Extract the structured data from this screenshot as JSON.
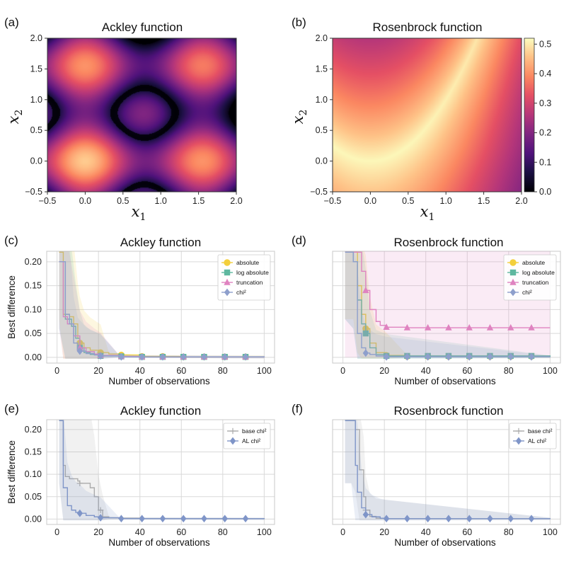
{
  "panels": {
    "a": {
      "label": "(a)",
      "title": "Ackley function"
    },
    "b": {
      "label": "(b)",
      "title": "Rosenbrock function"
    },
    "c": {
      "label": "(c)",
      "title": "Ackley function"
    },
    "d": {
      "label": "(d)",
      "title": "Rosenbrock function"
    },
    "e": {
      "label": "(e)",
      "title": "Ackley function"
    },
    "f": {
      "label": "(f)",
      "title": "Rosenbrock function"
    }
  },
  "heatmap_axes": {
    "xlabel_main": "x",
    "xlabel_sub": "1",
    "ylabel_main": "x",
    "ylabel_sub": "2",
    "ticks": [
      "−0.5",
      "0.0",
      "0.5",
      "1.0",
      "1.5",
      "2.0"
    ]
  },
  "colorbar": {
    "ticks": [
      "0.0",
      "0.1",
      "0.2",
      "0.3",
      "0.4",
      "0.5"
    ]
  },
  "line_axes": {
    "xlabel": "Number of observations",
    "ylabel": "Best difference",
    "xticks": [
      "0",
      "20",
      "40",
      "60",
      "80",
      "100"
    ],
    "yticks": [
      "0.00",
      "0.05",
      "0.10",
      "0.15",
      "0.20"
    ]
  },
  "legend_cd": [
    "absolute",
    "log absolute",
    "truncation",
    "chi²"
  ],
  "legend_ef": [
    "base chi²",
    "AL chi²"
  ],
  "colors": {
    "absolute": "#f3cf3c",
    "log_absolute": "#5fb8a0",
    "truncation": "#df83c0",
    "chi2": "#8e9fcc",
    "base_chi2": "#ababab",
    "al_chi2": "#7f95c8"
  },
  "chart_data": [
    {
      "type": "heatmap",
      "panel": "a",
      "title": "Ackley function",
      "x_range": [
        -0.5,
        2.0
      ],
      "y_range": [
        -0.5,
        2.0
      ],
      "colormap": "magma",
      "description_values": "periodic bright spots near (0,0),(0,1.57),(1.57,0),(1.57,1.57), dark rings around them"
    },
    {
      "type": "heatmap",
      "panel": "b",
      "title": "Rosenbrock function",
      "x_range": [
        -0.5,
        2.0
      ],
      "y_range": [
        -0.5,
        2.0
      ],
      "colormap": "magma",
      "colorbar_range": [
        0.0,
        0.52
      ]
    },
    {
      "type": "line",
      "panel": "c",
      "title": "Ackley function",
      "xlabel": "Number of observations",
      "ylabel": "Best difference",
      "xlim": [
        -5,
        105
      ],
      "ylim": [
        -0.012,
        0.222
      ],
      "series": [
        {
          "name": "absolute",
          "x": [
            1,
            3,
            6,
            8,
            10,
            11,
            13,
            16,
            21,
            25,
            31,
            40,
            60,
            100
          ],
          "y": [
            0.22,
            0.09,
            0.085,
            0.07,
            0.04,
            0.03,
            0.02,
            0.015,
            0.01,
            0.007,
            0.005,
            0.002,
            0.001,
            0.001
          ]
        },
        {
          "name": "log absolute",
          "x": [
            1,
            4,
            7,
            9,
            11,
            13,
            16,
            21,
            30,
            40,
            100
          ],
          "y": [
            0.2,
            0.08,
            0.065,
            0.04,
            0.02,
            0.01,
            0.006,
            0.003,
            0.002,
            0.001,
            0.0
          ]
        },
        {
          "name": "truncation",
          "x": [
            1,
            3,
            5,
            8,
            11,
            14,
            18,
            21,
            30,
            40,
            100
          ],
          "y": [
            0.2,
            0.085,
            0.07,
            0.045,
            0.02,
            0.012,
            0.007,
            0.004,
            0.002,
            0.001,
            0.0
          ]
        },
        {
          "name": "chi²",
          "x": [
            1,
            4,
            6,
            8,
            10,
            11,
            14,
            18,
            21,
            30,
            100
          ],
          "y": [
            0.2,
            0.09,
            0.07,
            0.03,
            0.015,
            0.013,
            0.008,
            0.005,
            0.003,
            0.001,
            0.0
          ]
        }
      ]
    },
    {
      "type": "line",
      "panel": "d",
      "title": "Rosenbrock function",
      "xlabel": "Number of observations",
      "ylabel": "",
      "xlim": [
        -5,
        105
      ],
      "ylim": [
        -0.012,
        0.222
      ],
      "series": [
        {
          "name": "absolute",
          "x": [
            1,
            5,
            7,
            9,
            11,
            13,
            16,
            21,
            31,
            100
          ],
          "y": [
            0.22,
            0.22,
            0.15,
            0.09,
            0.06,
            0.03,
            0.01,
            0.004,
            0.002,
            0.001
          ]
        },
        {
          "name": "log absolute",
          "x": [
            1,
            5,
            7,
            9,
            11,
            13,
            16,
            21,
            100
          ],
          "y": [
            0.22,
            0.2,
            0.12,
            0.07,
            0.05,
            0.02,
            0.006,
            0.003,
            0.001
          ]
        },
        {
          "name": "truncation",
          "x": [
            1,
            6,
            9,
            11,
            13,
            16,
            18,
            21,
            31,
            41,
            51,
            61,
            71,
            81,
            91,
            100
          ],
          "y": [
            0.22,
            0.22,
            0.18,
            0.14,
            0.1,
            0.075,
            0.067,
            0.063,
            0.062,
            0.062,
            0.062,
            0.062,
            0.062,
            0.062,
            0.062,
            0.062
          ]
        },
        {
          "name": "chi²",
          "x": [
            1,
            5,
            7,
            9,
            11,
            13,
            16,
            21,
            100
          ],
          "y": [
            0.22,
            0.2,
            0.05,
            0.02,
            0.009,
            0.006,
            0.003,
            0.001,
            0.0
          ]
        }
      ]
    },
    {
      "type": "line",
      "panel": "e",
      "title": "Ackley function",
      "xlabel": "Number of observations",
      "ylabel": "Best difference",
      "xlim": [
        -5,
        105
      ],
      "ylim": [
        -0.012,
        0.222
      ],
      "series": [
        {
          "name": "base chi²",
          "x": [
            1,
            3,
            4,
            6,
            8,
            10,
            11,
            13,
            16,
            18,
            20,
            22,
            25,
            30,
            40,
            100
          ],
          "y": [
            0.22,
            0.12,
            0.095,
            0.09,
            0.09,
            0.085,
            0.08,
            0.08,
            0.07,
            0.05,
            0.02,
            0.005,
            0.003,
            0.002,
            0.001,
            0.0
          ]
        },
        {
          "name": "AL chi²",
          "x": [
            1,
            3,
            5,
            7,
            9,
            11,
            14,
            18,
            21,
            30,
            100
          ],
          "y": [
            0.22,
            0.07,
            0.03,
            0.02,
            0.015,
            0.013,
            0.008,
            0.005,
            0.003,
            0.001,
            0.0
          ]
        }
      ]
    },
    {
      "type": "line",
      "panel": "f",
      "title": "Rosenbrock function",
      "xlabel": "Number of observations",
      "ylabel": "",
      "xlim": [
        -5,
        105
      ],
      "ylim": [
        -0.012,
        0.222
      ],
      "series": [
        {
          "name": "base chi²",
          "x": [
            1,
            4,
            6,
            8,
            10,
            11,
            13,
            16,
            21,
            100
          ],
          "y": [
            0.22,
            0.22,
            0.2,
            0.11,
            0.05,
            0.02,
            0.006,
            0.002,
            0.001,
            0.0
          ]
        },
        {
          "name": "AL chi²",
          "x": [
            1,
            4,
            6,
            7,
            9,
            11,
            14,
            18,
            21,
            100
          ],
          "y": [
            0.22,
            0.22,
            0.12,
            0.06,
            0.025,
            0.01,
            0.005,
            0.002,
            0.001,
            0.0
          ]
        }
      ]
    }
  ]
}
